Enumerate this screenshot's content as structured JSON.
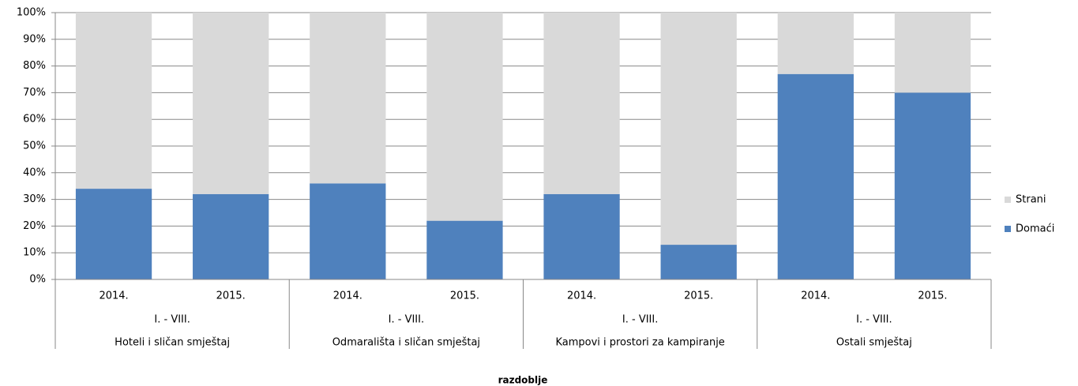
{
  "chart_data": {
    "type": "stacked_bar",
    "x_label": "razdoblje",
    "categories": [
      "2014.",
      "2015.",
      "2014.",
      "2015.",
      "2014.",
      "2015.",
      "2014.",
      "2015."
    ],
    "groups": [
      {
        "name": "Hoteli i sličan smještaj",
        "period": "I. - VIII."
      },
      {
        "name": "Odmarališta i sličan smještaj",
        "period": "I. - VIII."
      },
      {
        "name": "Kampovi i prostori za kampiranje",
        "period": "I. - VIII."
      },
      {
        "name": "Ostali smještaj",
        "period": "I. - VIII."
      }
    ],
    "series": [
      {
        "name": "Domaći",
        "color": "#4f81bd",
        "values": [
          34,
          32,
          36,
          22,
          32,
          13,
          77,
          70
        ]
      },
      {
        "name": "Strani",
        "color": "#d9d9d9",
        "values": [
          66,
          68,
          64,
          78,
          68,
          87,
          23,
          30
        ]
      }
    ],
    "ylim": [
      0,
      100
    ],
    "yticks": [
      {
        "value": 0,
        "label": "0%"
      },
      {
        "value": 10,
        "label": "10%"
      },
      {
        "value": 20,
        "label": "20%"
      },
      {
        "value": 30,
        "label": "30%"
      },
      {
        "value": 40,
        "label": "40%"
      },
      {
        "value": 50,
        "label": "50%"
      },
      {
        "value": 60,
        "label": "60%"
      },
      {
        "value": 70,
        "label": "70%"
      },
      {
        "value": 80,
        "label": "80%"
      },
      {
        "value": 90,
        "label": "90%"
      },
      {
        "value": 100,
        "label": "100%"
      }
    ],
    "grid": true,
    "legend": "right"
  }
}
